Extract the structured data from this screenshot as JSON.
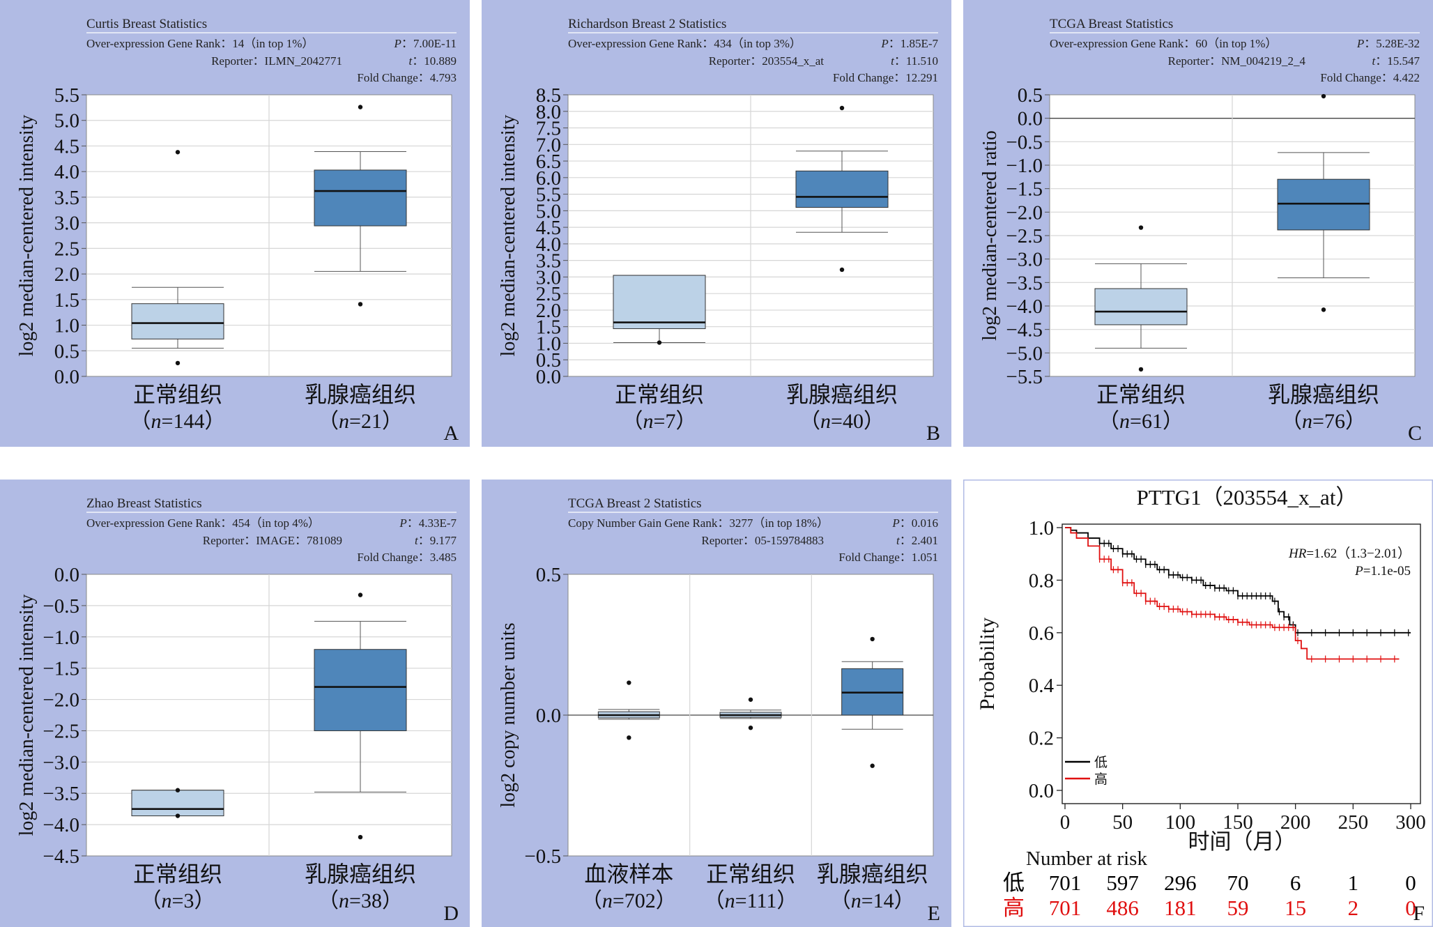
{
  "colors": {
    "panel_bg": "#b1bbe4",
    "plot_bg": "#ffffff",
    "grid": "#d6d6d6",
    "axis": "#888888",
    "box_light": "#bcd2e7",
    "box_dark": "#4f86ba",
    "km_low": "#000000",
    "km_high": "#e01010"
  },
  "chart_data": [
    {
      "panel_letter": "A",
      "type": "box",
      "title": "Curtis Breast Statistics",
      "rank": "Over-expression Gene Rank：14（in top 1%）",
      "p_label": "P",
      "p_value": "：7.00E-11",
      "reporter": "Reporter：ILMN_2042771",
      "t_label": "t",
      "t_value": "：10.889",
      "fold": "Fold Change：4.793",
      "ylabel": "log2 median-centered intensity",
      "ylim": [
        0,
        5.5
      ],
      "yticks": [
        "0.0",
        "0.5",
        "1.0",
        "1.5",
        "2.0",
        "2.5",
        "3.0",
        "3.5",
        "4.0",
        "4.5",
        "5.0",
        "5.5"
      ],
      "groups": [
        {
          "name": "正常组织",
          "n_label": "n",
          "n_value": "=144",
          "style": "light",
          "min": 0.55,
          "q1": 0.73,
          "median": 1.04,
          "q3": 1.42,
          "max": 1.74,
          "outliers": [
            0.26,
            4.38
          ]
        },
        {
          "name": "乳腺癌组织",
          "n_label": "n",
          "n_value": "=21",
          "style": "dark",
          "min": 2.05,
          "q1": 2.94,
          "median": 3.62,
          "q3": 4.03,
          "max": 4.39,
          "outliers": [
            1.41,
            5.26
          ]
        }
      ]
    },
    {
      "panel_letter": "B",
      "type": "box",
      "title": "Richardson Breast 2 Statistics",
      "rank": "Over-expression Gene Rank：434（in top 3%）",
      "p_label": "P",
      "p_value": "：1.85E-7",
      "reporter": "Reporter：203554_x_at",
      "t_label": "t",
      "t_value": "：11.510",
      "fold": "Fold Change：12.291",
      "ylabel": "log2 median-centered intensity",
      "ylim": [
        0,
        8.5
      ],
      "yticks": [
        "0.0",
        "0.5",
        "1.0",
        "1.5",
        "2.0",
        "2.5",
        "3.0",
        "3.5",
        "4.0",
        "4.5",
        "5.0",
        "5.5",
        "6.0",
        "6.5",
        "7.0",
        "7.5",
        "8.0",
        "8.5"
      ],
      "groups": [
        {
          "name": "正常组织",
          "n_label": "n",
          "n_value": "=7",
          "style": "light",
          "min": 1.02,
          "q1": 1.44,
          "median": 1.63,
          "q3": 3.05,
          "max": 3.05,
          "outliers": [
            1.02
          ]
        },
        {
          "name": "乳腺癌组织",
          "n_label": "n",
          "n_value": "=40",
          "style": "dark",
          "min": 4.35,
          "q1": 5.1,
          "median": 5.42,
          "q3": 6.2,
          "max": 6.8,
          "outliers": [
            3.22,
            8.1
          ]
        }
      ]
    },
    {
      "panel_letter": "C",
      "type": "box",
      "title": "TCGA Breast Statistics",
      "rank": "Over-expression Gene Rank：60（in top 1%）",
      "p_label": "P",
      "p_value": "：5.28E-32",
      "reporter": "Reporter：NM_004219_2_4",
      "t_label": "t",
      "t_value": "：15.547",
      "fold": "Fold Change：4.422",
      "ylabel": "log2 median-centered ratio",
      "ylim": [
        -5.5,
        0.5
      ],
      "zero_line": true,
      "yticks": [
        "−5.5",
        "−5.0",
        "−4.5",
        "−4.0",
        "−3.5",
        "−3.0",
        "−2.5",
        "−2.0",
        "−1.5",
        "−1.0",
        "−0.5",
        "0.0",
        "0.5"
      ],
      "groups": [
        {
          "name": "正常组织",
          "n_label": "n",
          "n_value": "=61",
          "style": "light",
          "min": -4.9,
          "q1": -4.4,
          "median": -4.12,
          "q3": -3.63,
          "max": -3.1,
          "outliers": [
            -5.35,
            -2.33
          ]
        },
        {
          "name": "乳腺癌组织",
          "n_label": "n",
          "n_value": "=76",
          "style": "dark",
          "min": -3.4,
          "q1": -2.38,
          "median": -1.82,
          "q3": -1.3,
          "max": -0.73,
          "outliers": [
            -4.08,
            0.47
          ]
        }
      ]
    },
    {
      "panel_letter": "D",
      "type": "box",
      "title": "Zhao Breast Statistics",
      "rank": "Over-expression Gene Rank：454（in top 4%）",
      "p_label": "P",
      "p_value": "：4.33E-7",
      "reporter": "Reporter：IMAGE：781089",
      "t_label": "t",
      "t_value": "：9.177",
      "fold": "Fold Change：3.485",
      "ylabel": "log2 median-centered intensity",
      "ylim": [
        -4.5,
        0
      ],
      "yticks": [
        "−4.5",
        "−4.0",
        "−3.5",
        "−3.0",
        "−2.5",
        "−2.0",
        "−1.5",
        "−1.0",
        "−0.5",
        "0.0"
      ],
      "groups": [
        {
          "name": "正常组织",
          "n_label": "n",
          "n_value": "=3",
          "style": "light",
          "min": -3.86,
          "q1": -3.86,
          "median": -3.75,
          "q3": -3.45,
          "max": -3.45,
          "outliers": [
            -3.86,
            -3.45
          ]
        },
        {
          "name": "乳腺癌组织",
          "n_label": "n",
          "n_value": "=38",
          "style": "dark",
          "min": -3.48,
          "q1": -2.5,
          "median": -1.8,
          "q3": -1.2,
          "max": -0.75,
          "outliers": [
            -4.2,
            -0.33
          ]
        }
      ]
    },
    {
      "panel_letter": "E",
      "type": "box",
      "title": "TCGA Breast 2 Statistics",
      "rank": "Copy Number Gain Gene Rank：3277（in top 18%）",
      "p_label": "P",
      "p_value": "：0.016",
      "reporter": "Reporter：05-159784883",
      "t_label": "t",
      "t_value": "：2.401",
      "fold": "Fold Change：1.051",
      "ylabel": "log2 copy number units",
      "ylim": [
        -0.5,
        0.5
      ],
      "zero_line": true,
      "no_hgrid": true,
      "yticks": [
        "−0.5",
        "0.0",
        "0.5"
      ],
      "groups": [
        {
          "name": "血液样本",
          "n_label": "n",
          "n_value": "=702",
          "style": "light",
          "min": -0.015,
          "q1": -0.01,
          "median": 0.0,
          "q3": 0.012,
          "max": 0.02,
          "outliers": [
            -0.08,
            0.115
          ]
        },
        {
          "name": "正常组织",
          "n_label": "n",
          "n_value": "=111",
          "style": "light",
          "min": -0.012,
          "q1": -0.008,
          "median": 0.0,
          "q3": 0.01,
          "max": 0.018,
          "outliers": [
            -0.045,
            0.055
          ]
        },
        {
          "name": "乳腺癌组织",
          "n_label": "n",
          "n_value": "=14",
          "style": "dark",
          "min": -0.05,
          "q1": 0.0,
          "median": 0.08,
          "q3": 0.165,
          "max": 0.19,
          "outliers": [
            -0.18,
            0.27
          ]
        }
      ]
    },
    {
      "panel_letter": "F",
      "type": "line",
      "subtype": "kaplan-meier",
      "title": "PTTG1（203554_x_at）",
      "hr_label": "HR",
      "hr_value": "=1.62（1.3−2.01）",
      "p_label": "P",
      "p_value": "=1.1e-05",
      "ylabel": "Probability",
      "xlabel": "时间（月）",
      "xlim": [
        0,
        300
      ],
      "ylim": [
        0,
        1.0
      ],
      "xticks": [
        "0",
        "50",
        "100",
        "150",
        "200",
        "250",
        "300"
      ],
      "yticks": [
        "0.0",
        "0.2",
        "0.4",
        "0.6",
        "0.8",
        "1.0"
      ],
      "legend_position": "bottom-left",
      "series": [
        {
          "name": "低",
          "color": "#000000",
          "x": [
            0,
            5,
            10,
            20,
            30,
            40,
            50,
            60,
            70,
            80,
            90,
            100,
            110,
            120,
            130,
            140,
            150,
            160,
            170,
            180,
            185,
            190,
            195,
            200,
            210,
            220,
            240,
            260,
            280,
            300
          ],
          "y": [
            1.0,
            0.99,
            0.98,
            0.96,
            0.94,
            0.92,
            0.9,
            0.88,
            0.86,
            0.84,
            0.82,
            0.81,
            0.8,
            0.78,
            0.77,
            0.76,
            0.74,
            0.74,
            0.74,
            0.72,
            0.68,
            0.66,
            0.63,
            0.6,
            0.6,
            0.6,
            0.6,
            0.6,
            0.6,
            0.6
          ]
        },
        {
          "name": "高",
          "color": "#e01010",
          "x": [
            0,
            5,
            10,
            20,
            30,
            40,
            50,
            60,
            70,
            80,
            90,
            100,
            110,
            120,
            130,
            140,
            150,
            160,
            170,
            180,
            190,
            200,
            205,
            210,
            220,
            240,
            260,
            290
          ],
          "y": [
            1.0,
            0.98,
            0.96,
            0.93,
            0.88,
            0.84,
            0.79,
            0.75,
            0.72,
            0.7,
            0.69,
            0.68,
            0.67,
            0.67,
            0.66,
            0.65,
            0.64,
            0.63,
            0.63,
            0.62,
            0.62,
            0.57,
            0.54,
            0.5,
            0.5,
            0.5,
            0.5,
            0.5
          ]
        }
      ],
      "risk_table": {
        "header": "Number at risk",
        "rows": [
          {
            "label": "低",
            "color": "#000000",
            "values": [
              "701",
              "597",
              "296",
              "70",
              "6",
              "1",
              "0"
            ]
          },
          {
            "label": "高",
            "color": "#e01010",
            "values": [
              "701",
              "486",
              "181",
              "59",
              "15",
              "2",
              "0"
            ]
          }
        ]
      }
    }
  ]
}
